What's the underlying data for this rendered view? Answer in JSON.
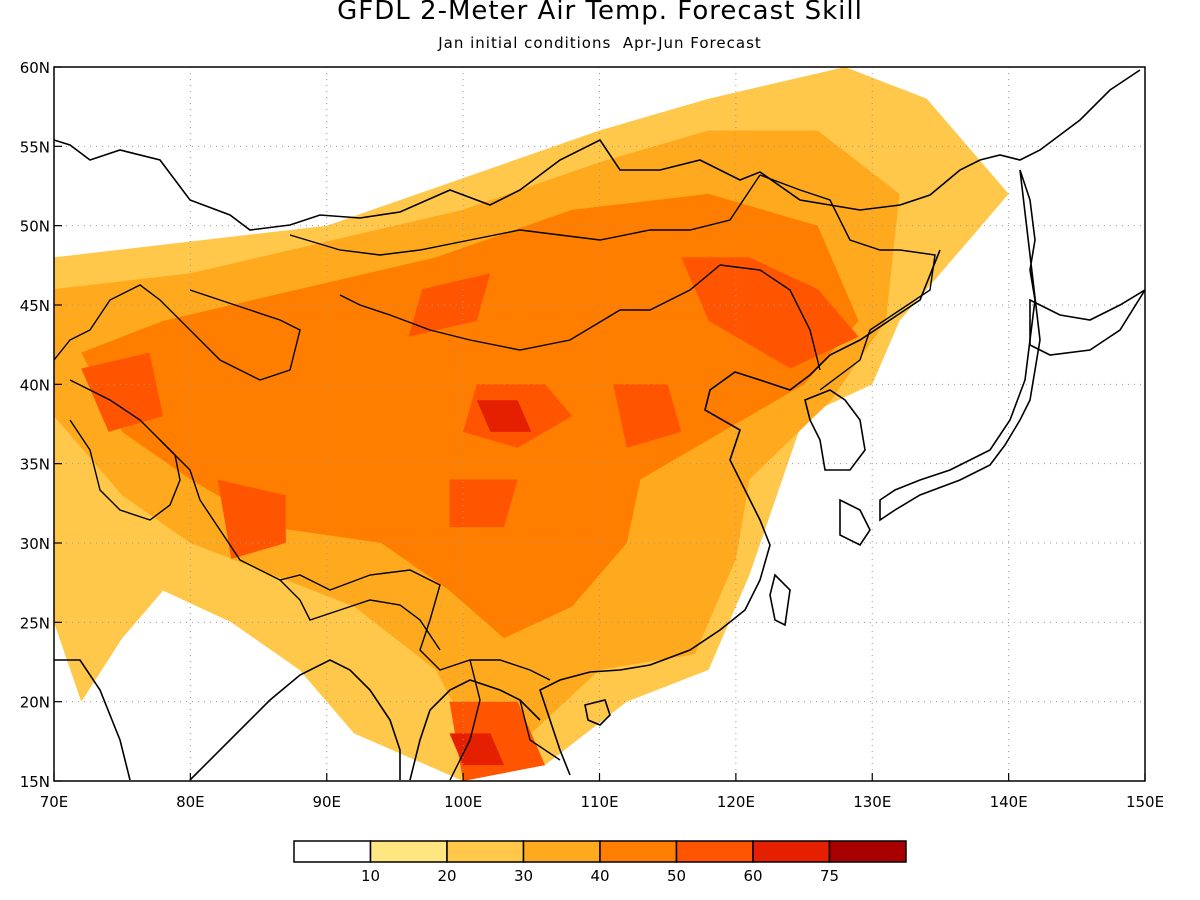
{
  "title": "GFDL 2-Meter Air Temp. Forecast Skill",
  "subtitle": "Jan initial conditions  Apr-Jun Forecast",
  "map": {
    "lon_range": [
      70,
      150
    ],
    "lat_range": [
      15,
      60
    ],
    "lon_ticks": [
      "70E",
      "80E",
      "90E",
      "100E",
      "110E",
      "120E",
      "130E",
      "140E",
      "150E"
    ],
    "lat_ticks": [
      "15N",
      "20N",
      "25N",
      "30N",
      "35N",
      "40N",
      "45N",
      "50N",
      "55N",
      "60N"
    ],
    "grid": true,
    "grid_style": "dotted"
  },
  "legend": {
    "colors": [
      "#ffffff",
      "#ffe680",
      "#ffc84b",
      "#ffaa1e",
      "#ff7e00",
      "#ff5500",
      "#e42000",
      "#a80000"
    ],
    "labels": [
      "10",
      "20",
      "30",
      "40",
      "50",
      "60",
      "75"
    ]
  },
  "chart_data": {
    "type": "heatmap",
    "variable": "2-Meter Air Temp. Forecast Skill",
    "x_range": [
      70,
      150
    ],
    "y_range": [
      15,
      60
    ],
    "levels": [
      10,
      20,
      30,
      40,
      50,
      60,
      75
    ],
    "regions": [
      {
        "level": 20,
        "points": [
          [
            70,
            48
          ],
          [
            80,
            49
          ],
          [
            90,
            50
          ],
          [
            100,
            53
          ],
          [
            110,
            56
          ],
          [
            118,
            58
          ],
          [
            128,
            60
          ],
          [
            134,
            58
          ],
          [
            140,
            52
          ],
          [
            138,
            50
          ],
          [
            132,
            44
          ],
          [
            130,
            40
          ],
          [
            125,
            38
          ],
          [
            123,
            33
          ],
          [
            121,
            28
          ],
          [
            118,
            22
          ],
          [
            112,
            20
          ],
          [
            106,
            16
          ],
          [
            100,
            15
          ],
          [
            92,
            18
          ],
          [
            88,
            22
          ],
          [
            83,
            25
          ],
          [
            78,
            27
          ],
          [
            75,
            24
          ],
          [
            72,
            20
          ],
          [
            70,
            25
          ]
        ]
      },
      {
        "level": 30,
        "points": [
          [
            70,
            46
          ],
          [
            80,
            47
          ],
          [
            90,
            49
          ],
          [
            100,
            51
          ],
          [
            110,
            54
          ],
          [
            118,
            56
          ],
          [
            126,
            56
          ],
          [
            132,
            52
          ],
          [
            131,
            44
          ],
          [
            127,
            39
          ],
          [
            121,
            34
          ],
          [
            120,
            29
          ],
          [
            117,
            23
          ],
          [
            110,
            22
          ],
          [
            105,
            18
          ],
          [
            101,
            17
          ],
          [
            98,
            22
          ],
          [
            92,
            26
          ],
          [
            86,
            28
          ],
          [
            80,
            30
          ],
          [
            75,
            33
          ],
          [
            72,
            36
          ],
          [
            70,
            38
          ]
        ]
      },
      {
        "level": 40,
        "points": [
          [
            72,
            42
          ],
          [
            78,
            44
          ],
          [
            88,
            46
          ],
          [
            98,
            48
          ],
          [
            108,
            51
          ],
          [
            118,
            52
          ],
          [
            126,
            50
          ],
          [
            129,
            44
          ],
          [
            125,
            40
          ],
          [
            119,
            37
          ],
          [
            113,
            34
          ],
          [
            112,
            30
          ],
          [
            108,
            26
          ],
          [
            103,
            24
          ],
          [
            99,
            27
          ],
          [
            94,
            30
          ],
          [
            86,
            31
          ],
          [
            80,
            34
          ],
          [
            75,
            37
          ]
        ]
      },
      {
        "level": 50,
        "points": [
          [
            116,
            48
          ],
          [
            121,
            48
          ],
          [
            126,
            46
          ],
          [
            129,
            43
          ],
          [
            124,
            41
          ],
          [
            118,
            44
          ]
        ]
      },
      {
        "level": 50,
        "points": [
          [
            97,
            46
          ],
          [
            102,
            47
          ],
          [
            101,
            44
          ],
          [
            96,
            43
          ]
        ]
      },
      {
        "level": 50,
        "points": [
          [
            101,
            40
          ],
          [
            106,
            40
          ],
          [
            108,
            38
          ],
          [
            104,
            36
          ],
          [
            100,
            37
          ]
        ]
      },
      {
        "level": 50,
        "points": [
          [
            111,
            40
          ],
          [
            115,
            40
          ],
          [
            116,
            37
          ],
          [
            112,
            36
          ]
        ]
      },
      {
        "level": 50,
        "points": [
          [
            82,
            34
          ],
          [
            87,
            33
          ],
          [
            87,
            30
          ],
          [
            83,
            29
          ]
        ]
      },
      {
        "level": 50,
        "points": [
          [
            72,
            41
          ],
          [
            77,
            42
          ],
          [
            78,
            38
          ],
          [
            74,
            37
          ]
        ]
      },
      {
        "level": 50,
        "points": [
          [
            99,
            20
          ],
          [
            104,
            20
          ],
          [
            106,
            16
          ],
          [
            100,
            15
          ]
        ]
      },
      {
        "level": 50,
        "points": [
          [
            99,
            34
          ],
          [
            104,
            34
          ],
          [
            103,
            31
          ],
          [
            99,
            31
          ]
        ]
      },
      {
        "level": 60,
        "points": [
          [
            101,
            39
          ],
          [
            104,
            39
          ],
          [
            105,
            37
          ],
          [
            102,
            37
          ]
        ]
      },
      {
        "level": 60,
        "points": [
          [
            99,
            18
          ],
          [
            102,
            18
          ],
          [
            103,
            16
          ],
          [
            100,
            16
          ]
        ]
      }
    ]
  }
}
